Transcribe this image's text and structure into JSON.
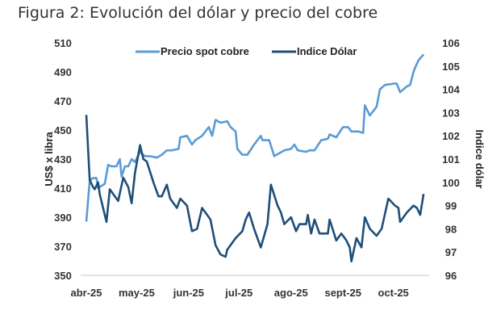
{
  "title": "Figura 2: Evolución del dólar y precio del cobre",
  "chart_data": {
    "type": "line",
    "title": "Figura 2: Evolución del dólar y precio del cobre",
    "xlabel": "",
    "ylabel": "US$ x libra",
    "y2label": "Indice dólar",
    "x_unit": "days since 1 Apr 2025",
    "x_ticks": [
      {
        "day": 0,
        "label": "abr-25"
      },
      {
        "day": 30,
        "label": "may-25"
      },
      {
        "day": 61,
        "label": "jun-25"
      },
      {
        "day": 91,
        "label": "jul-25"
      },
      {
        "day": 122,
        "label": "ago-25"
      },
      {
        "day": 153,
        "label": "sept-25"
      },
      {
        "day": 183,
        "label": "oct-25"
      }
    ],
    "ylim": [
      350,
      510
    ],
    "yticks": [
      350,
      370,
      390,
      410,
      430,
      450,
      470,
      490,
      510
    ],
    "y2lim": [
      96,
      106
    ],
    "y2ticks": [
      96,
      97,
      98,
      99,
      100,
      101,
      102,
      103,
      104,
      105,
      106
    ],
    "legend_position": "top-center",
    "series": [
      {
        "name": "Precio spot cobre",
        "axis": "left",
        "color": "#5b9bd5",
        "points": [
          [
            0,
            387
          ],
          [
            2,
            415
          ],
          [
            4,
            417
          ],
          [
            6,
            417
          ],
          [
            7,
            410
          ],
          [
            11,
            413
          ],
          [
            13,
            426
          ],
          [
            15,
            425
          ],
          [
            18,
            425
          ],
          [
            20,
            430
          ],
          [
            21,
            418
          ],
          [
            23,
            425
          ],
          [
            25,
            425
          ],
          [
            27,
            430
          ],
          [
            29,
            428
          ],
          [
            32,
            435
          ],
          [
            35,
            432
          ],
          [
            38,
            432
          ],
          [
            42,
            431
          ],
          [
            45,
            433
          ],
          [
            48,
            436
          ],
          [
            51,
            436
          ],
          [
            55,
            437
          ],
          [
            56,
            445
          ],
          [
            60,
            446
          ],
          [
            63,
            440
          ],
          [
            65,
            443
          ],
          [
            69,
            446
          ],
          [
            73,
            452
          ],
          [
            75,
            446
          ],
          [
            77,
            457
          ],
          [
            80,
            455
          ],
          [
            84,
            456
          ],
          [
            86,
            452
          ],
          [
            89,
            449
          ],
          [
            90,
            437
          ],
          [
            93,
            433
          ],
          [
            96,
            433
          ],
          [
            100,
            440
          ],
          [
            104,
            446
          ],
          [
            105,
            443
          ],
          [
            109,
            443
          ],
          [
            112,
            432
          ],
          [
            115,
            434
          ],
          [
            118,
            436
          ],
          [
            122,
            437
          ],
          [
            124,
            440
          ],
          [
            126,
            436
          ],
          [
            131,
            435
          ],
          [
            133,
            436
          ],
          [
            136,
            436
          ],
          [
            140,
            443
          ],
          [
            144,
            444
          ],
          [
            145,
            447
          ],
          [
            149,
            445
          ],
          [
            153,
            452
          ],
          [
            156,
            452
          ],
          [
            158,
            449
          ],
          [
            162,
            449
          ],
          [
            165,
            448
          ],
          [
            166,
            467
          ],
          [
            169,
            460
          ],
          [
            173,
            466
          ],
          [
            175,
            478
          ],
          [
            178,
            481
          ],
          [
            184,
            482
          ],
          [
            185,
            482
          ],
          [
            187,
            476
          ],
          [
            191,
            480
          ],
          [
            193,
            481
          ],
          [
            195,
            490
          ],
          [
            196,
            493
          ],
          [
            198,
            498
          ],
          [
            201,
            502
          ]
        ]
      },
      {
        "name": "Indice Dólar",
        "axis": "right",
        "color": "#1f4e79",
        "points": [
          [
            0,
            102.9
          ],
          [
            2,
            100.1
          ],
          [
            4,
            99.8
          ],
          [
            5,
            99.7
          ],
          [
            7,
            100.0
          ],
          [
            8,
            99.5
          ],
          [
            12,
            98.3
          ],
          [
            14,
            99.7
          ],
          [
            16,
            99.5
          ],
          [
            19,
            99.2
          ],
          [
            22,
            100.2
          ],
          [
            25,
            99.8
          ],
          [
            27,
            99.1
          ],
          [
            29,
            100.4
          ],
          [
            32,
            101.6
          ],
          [
            34,
            101.0
          ],
          [
            36,
            100.9
          ],
          [
            40,
            100.0
          ],
          [
            43,
            99.4
          ],
          [
            45,
            99.4
          ],
          [
            48,
            99.9
          ],
          [
            50,
            99.3
          ],
          [
            54,
            98.9
          ],
          [
            56,
            99.3
          ],
          [
            60,
            99.0
          ],
          [
            63,
            97.9
          ],
          [
            66,
            98.0
          ],
          [
            69,
            98.9
          ],
          [
            72,
            98.6
          ],
          [
            74,
            98.4
          ],
          [
            77,
            97.3
          ],
          [
            80,
            96.9
          ],
          [
            83,
            96.8
          ],
          [
            84,
            97.1
          ],
          [
            89,
            97.6
          ],
          [
            93,
            97.9
          ],
          [
            95,
            98.4
          ],
          [
            97,
            98.7
          ],
          [
            100,
            98.0
          ],
          [
            104,
            97.2
          ],
          [
            108,
            98.2
          ],
          [
            110,
            99.9
          ],
          [
            114,
            99.0
          ],
          [
            116,
            98.7
          ],
          [
            118,
            98.2
          ],
          [
            122,
            98.5
          ],
          [
            125,
            97.9
          ],
          [
            127,
            98.2
          ],
          [
            131,
            98.2
          ],
          [
            132,
            98.6
          ],
          [
            134,
            97.8
          ],
          [
            136,
            98.4
          ],
          [
            139,
            97.8
          ],
          [
            144,
            97.8
          ],
          [
            145,
            98.4
          ],
          [
            149,
            97.5
          ],
          [
            152,
            97.8
          ],
          [
            155,
            97.5
          ],
          [
            157,
            97.2
          ],
          [
            158,
            96.6
          ],
          [
            161,
            97.6
          ],
          [
            164,
            97.2
          ],
          [
            166,
            98.5
          ],
          [
            169,
            98.0
          ],
          [
            173,
            97.7
          ],
          [
            176,
            98.0
          ],
          [
            180,
            99.3
          ],
          [
            184,
            99.0
          ],
          [
            186,
            98.9
          ],
          [
            187,
            98.3
          ],
          [
            191,
            98.7
          ],
          [
            195,
            99.0
          ],
          [
            197,
            98.9
          ],
          [
            199,
            98.6
          ],
          [
            201,
            99.5
          ]
        ]
      }
    ]
  }
}
